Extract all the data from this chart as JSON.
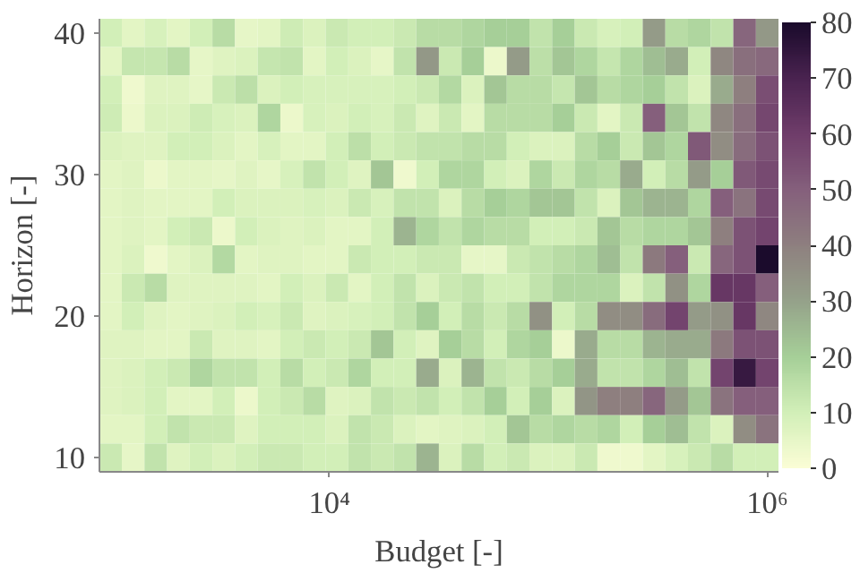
{
  "chart_data": {
    "type": "heatmap",
    "xlabel": "Budget [-]",
    "ylabel": "Horizon [-]",
    "x": [
      1000,
      1269,
      1610,
      2043,
      2593,
      3290,
      4175,
      5298,
      6723,
      8532,
      10826,
      13738,
      17433,
      22122,
      28072,
      35622,
      45204,
      57362,
      72790,
      92367,
      117210,
      148735,
      188739,
      239503,
      303920,
      385662,
      489390,
      621017,
      788046,
      1000000
    ],
    "y_categories": [
      "40",
      null,
      null,
      null,
      null,
      "30",
      null,
      null,
      null,
      null,
      "20",
      null,
      null,
      null,
      null,
      "10"
    ],
    "cells": [
      [
        10,
        6,
        9,
        6,
        10,
        16,
        5,
        6,
        11,
        8,
        12,
        10,
        10,
        12,
        16,
        16,
        18,
        20,
        20,
        14,
        20,
        12,
        9,
        10,
        32,
        16,
        18,
        14,
        48,
        33
      ],
      [
        6,
        13,
        13,
        16,
        5,
        7,
        8,
        13,
        14,
        6,
        10,
        8,
        5,
        14,
        33,
        12,
        20,
        4,
        32,
        15,
        22,
        18,
        13,
        18,
        24,
        28,
        10,
        38,
        45,
        47
      ],
      [
        10,
        3,
        7,
        7,
        5,
        12,
        15,
        8,
        10,
        9,
        9,
        9,
        9,
        10,
        12,
        17,
        8,
        22,
        16,
        16,
        13,
        22,
        16,
        18,
        20,
        14,
        8,
        28,
        40,
        55
      ],
      [
        11,
        4,
        8,
        8,
        11,
        9,
        8,
        18,
        4,
        9,
        8,
        10,
        9,
        12,
        7,
        12,
        6,
        16,
        16,
        16,
        20,
        12,
        6,
        12,
        50,
        22,
        14,
        38,
        45,
        57
      ],
      [
        8,
        7,
        7,
        10,
        10,
        8,
        6,
        9,
        6,
        6,
        10,
        15,
        10,
        12,
        14,
        14,
        16,
        16,
        10,
        8,
        8,
        16,
        20,
        12,
        22,
        18,
        52,
        36,
        46,
        54
      ],
      [
        6,
        7,
        4,
        6,
        6,
        5,
        7,
        5,
        9,
        14,
        10,
        7,
        22,
        3,
        10,
        18,
        18,
        10,
        8,
        18,
        12,
        18,
        16,
        28,
        10,
        16,
        32,
        20,
        52,
        56
      ],
      [
        6,
        7,
        6,
        6,
        6,
        10,
        8,
        8,
        8,
        9,
        8,
        12,
        9,
        14,
        14,
        8,
        16,
        20,
        18,
        22,
        22,
        14,
        8,
        22,
        26,
        26,
        18,
        50,
        44,
        56
      ],
      [
        6,
        7,
        6,
        10,
        12,
        4,
        10,
        8,
        7,
        8,
        6,
        6,
        10,
        26,
        18,
        14,
        18,
        16,
        16,
        10,
        10,
        12,
        22,
        16,
        18,
        18,
        22,
        40,
        54,
        58
      ],
      [
        6,
        8,
        3,
        6,
        8,
        17,
        6,
        7,
        7,
        6,
        6,
        12,
        10,
        10,
        12,
        12,
        5,
        5,
        12,
        14,
        16,
        18,
        24,
        14,
        42,
        50,
        12,
        48,
        54,
        80
      ],
      [
        6,
        12,
        16,
        7,
        7,
        7,
        7,
        6,
        10,
        8,
        12,
        6,
        10,
        14,
        8,
        12,
        14,
        10,
        10,
        14,
        18,
        18,
        18,
        8,
        14,
        35,
        18,
        62,
        62,
        50
      ],
      [
        6,
        10,
        7,
        6,
        7,
        8,
        10,
        9,
        12,
        7,
        8,
        9,
        10,
        14,
        20,
        10,
        16,
        12,
        16,
        35,
        10,
        16,
        36,
        36,
        46,
        58,
        32,
        35,
        62,
        38
      ],
      [
        7,
        7,
        6,
        6,
        12,
        7,
        7,
        6,
        10,
        12,
        10,
        12,
        22,
        10,
        7,
        20,
        16,
        10,
        18,
        20,
        4,
        28,
        16,
        16,
        26,
        28,
        28,
        42,
        54,
        54
      ],
      [
        7,
        8,
        10,
        12,
        18,
        14,
        14,
        10,
        16,
        10,
        12,
        18,
        10,
        10,
        28,
        8,
        26,
        14,
        12,
        16,
        20,
        28,
        14,
        14,
        18,
        24,
        14,
        58,
        74,
        58
      ],
      [
        7,
        8,
        10,
        6,
        6,
        10,
        4,
        10,
        12,
        16,
        7,
        8,
        14,
        12,
        14,
        10,
        14,
        20,
        10,
        20,
        8,
        34,
        40,
        40,
        48,
        32,
        22,
        44,
        50,
        50
      ],
      [
        6,
        6,
        10,
        14,
        12,
        12,
        7,
        10,
        10,
        10,
        8,
        14,
        12,
        8,
        6,
        7,
        8,
        10,
        22,
        16,
        18,
        16,
        18,
        10,
        20,
        24,
        14,
        8,
        36,
        44
      ],
      [
        12,
        5,
        14,
        7,
        10,
        8,
        10,
        12,
        12,
        10,
        10,
        14,
        12,
        14,
        26,
        8,
        16,
        10,
        12,
        8,
        8,
        12,
        3,
        3,
        6,
        9,
        12,
        16,
        10,
        10
      ]
    ],
    "log": "x",
    "xlim": [
      890,
      1125000
    ],
    "xticks": [
      {
        "value": 10000,
        "label": "10⁴"
      },
      {
        "value": 1000000,
        "label": "10⁶"
      }
    ],
    "clim": [
      0,
      80
    ],
    "cticks": [
      0,
      10,
      20,
      30,
      40,
      50,
      60,
      70,
      80
    ],
    "grid": false
  }
}
